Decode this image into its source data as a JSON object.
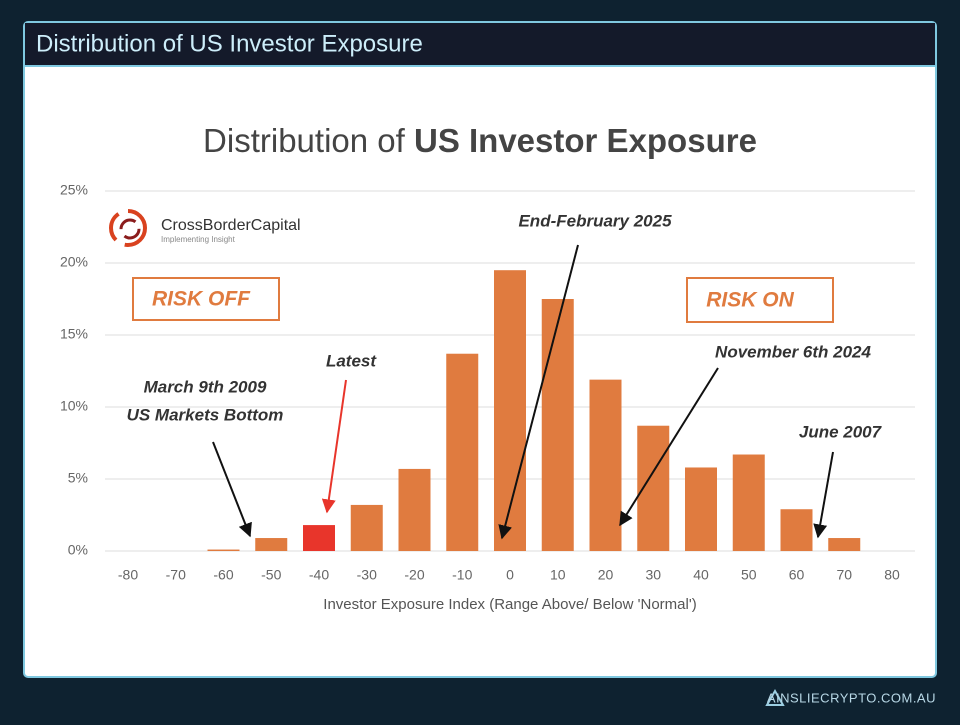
{
  "header": {
    "title": "Distribution of US Investor Exposure"
  },
  "chart_data": {
    "type": "bar",
    "title_parts": [
      "Distribution of",
      "US Investor Exposure"
    ],
    "x_label": "Investor Exposure Index  (Range Above/ Below 'Normal')",
    "categories": [
      "-80",
      "-70",
      "-60",
      "-50",
      "-40",
      "-30",
      "-20",
      "-10",
      "0",
      "10",
      "20",
      "30",
      "40",
      "50",
      "60",
      "70",
      "80"
    ],
    "values": [
      0,
      0,
      0.1,
      0.9,
      1.8,
      3.2,
      5.7,
      13.7,
      19.5,
      17.5,
      11.9,
      8.7,
      5.8,
      6.7,
      2.9,
      0.9,
      0
    ],
    "colors": [
      "#e07b3f",
      "#e07b3f",
      "#e07b3f",
      "#e07b3f",
      "#e8352b",
      "#e07b3f",
      "#e07b3f",
      "#e07b3f",
      "#e07b3f",
      "#e07b3f",
      "#e07b3f",
      "#e07b3f",
      "#e07b3f",
      "#e07b3f",
      "#e07b3f",
      "#e07b3f",
      "#e07b3f"
    ],
    "ylim": [
      0,
      25
    ],
    "yticks": [
      {
        "value": 0,
        "label": "0%"
      },
      {
        "value": 5,
        "label": "5%"
      },
      {
        "value": 10,
        "label": "10%"
      },
      {
        "value": 15,
        "label": "15%"
      },
      {
        "value": 20,
        "label": "20%"
      },
      {
        "value": 25,
        "label": "25%"
      }
    ],
    "grid": true,
    "annotations": [
      "End-February 2025",
      "Latest",
      "March 9th 2009",
      "US Markets Bottom",
      "November 6th 2024",
      "June 2007"
    ],
    "regions": [
      "RISK OFF",
      "RISK ON"
    ],
    "logo": {
      "name": "CrossBorderCapital",
      "tagline": "Implementing Insight"
    }
  },
  "footer": {
    "site": "AINSLIECRYPTO.COM.AU"
  }
}
